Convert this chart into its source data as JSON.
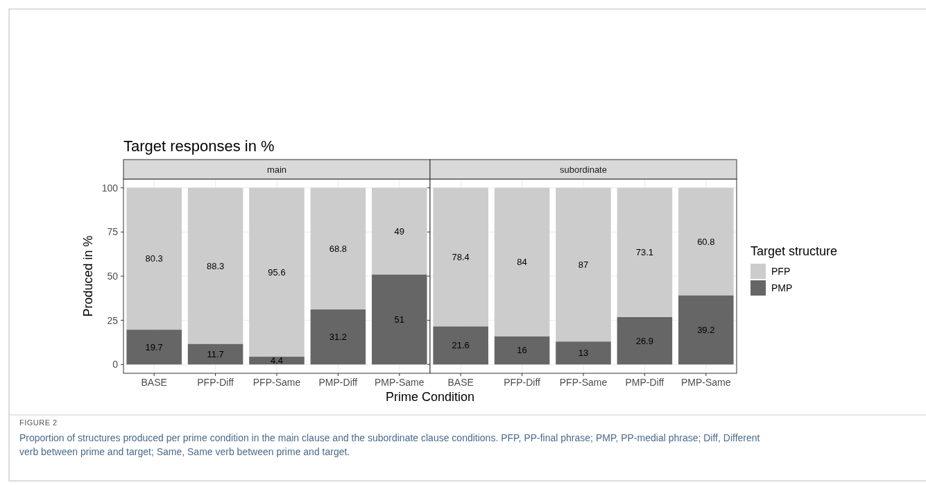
{
  "chart_data": [
    {
      "type": "bar",
      "title": "Target responses in %",
      "subtitle": "main",
      "xlabel": "Prime Condition",
      "ylabel": "Produced in %",
      "categories": [
        "BASE",
        "PFP-Diff",
        "PFP-Same",
        "PMP-Diff",
        "PMP-Same"
      ],
      "stacked": true,
      "ylim": [
        -5,
        105
      ],
      "yticks": [
        0,
        25,
        50,
        75,
        100
      ],
      "grid": true,
      "data_labels": true,
      "legend": false,
      "series": [
        {
          "color": "#666666",
          "values": [
            19.7,
            11.7,
            4.4,
            31.2,
            51
          ]
        },
        {
          "color": "#cccccc",
          "values": [
            80.3,
            88.3,
            95.6,
            68.8,
            49
          ]
        }
      ]
    },
    {
      "type": "bar",
      "subtitle": "subordinate",
      "categories": [
        "BASE",
        "PFP-Diff",
        "PFP-Same",
        "PMP-Diff",
        "PMP-Same"
      ],
      "stacked": true,
      "ylim": [
        -5,
        105
      ],
      "yticks": [
        0,
        25,
        50,
        75,
        100
      ],
      "grid": true,
      "data_labels": true,
      "tick_labels": "x",
      "legend": "right",
      "legend_title": "Target structure",
      "series": [
        {
          "name": "PMP",
          "color": "#666666",
          "values": [
            21.6,
            16,
            13,
            26.9,
            39.2
          ]
        },
        {
          "name": "PFP",
          "color": "#cccccc",
          "values": [
            78.4,
            84,
            87,
            73.1,
            60.8
          ]
        }
      ],
      "annotations": [
        "FIGURE 2",
        "Proportion of structures produced per prime condition in the main clause and the subordinate clause conditions. PFP, PP-final phrase; PMP, PP-medial phrase; Diff, Different verb between prime and target; Same, Same verb between prime and target."
      ]
    }
  ]
}
